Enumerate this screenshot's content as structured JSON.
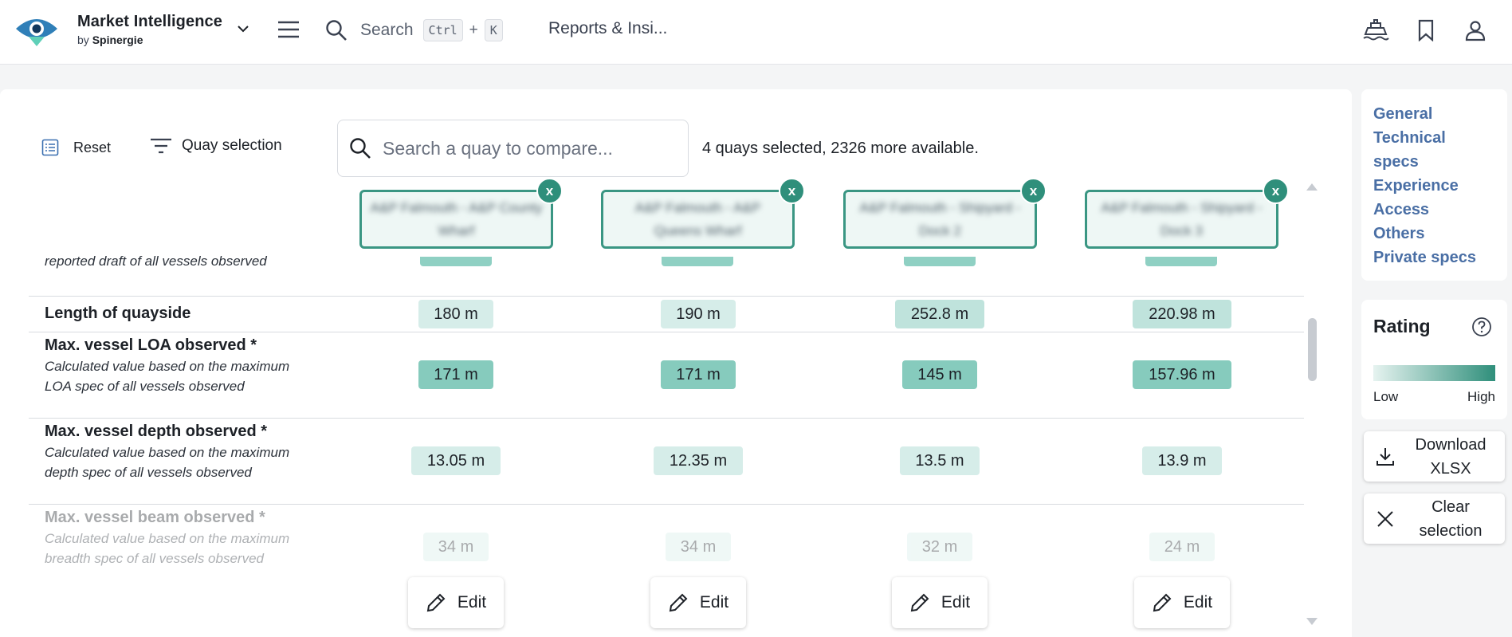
{
  "header": {
    "brand_title": "Market Intelligence",
    "brand_by": "by",
    "brand_company": "Spinergie",
    "search_label": "Search",
    "shortcut_ctrl": "Ctrl",
    "shortcut_plus": "+",
    "shortcut_key": "K",
    "breadcrumb": "Reports & Insi..."
  },
  "toolbar": {
    "reset_label": "Reset",
    "quay_selection_label": "Quay selection",
    "search_placeholder": "Search a quay to compare...",
    "selection_status": "4 quays selected, 2326 more available."
  },
  "columns": [
    {
      "name": "A&P Falmouth - A&P County Wharf",
      "close": "x"
    },
    {
      "name": "A&P Falmouth - A&P Queens Wharf",
      "close": "x"
    },
    {
      "name": "A&P Falmouth - Shipyard - Dock 2",
      "close": "x"
    },
    {
      "name": "A&P Falmouth - Shipyard - Dock 3",
      "close": "x"
    }
  ],
  "rows": {
    "cut_desc": "reported draft of all vessels observed",
    "length": {
      "label": "Length of quayside",
      "values": [
        "180 m",
        "190 m",
        "252.8 m",
        "220.98 m"
      ]
    },
    "loa": {
      "label": "Max. vessel LOA observed *",
      "desc": "Calculated value based on the maximum LOA spec of all vessels observed",
      "values": [
        "171 m",
        "171 m",
        "145 m",
        "157.96 m"
      ]
    },
    "depth": {
      "label": "Max. vessel depth observed *",
      "desc": "Calculated value based on the maximum depth spec of all vessels observed",
      "values": [
        "13.05 m",
        "12.35 m",
        "13.5 m",
        "13.9 m"
      ]
    },
    "beam": {
      "label": "Max. vessel beam observed *",
      "desc": "Calculated value based on the maximum breadth spec of all vessels observed",
      "values": [
        "34 m",
        "34 m",
        "32 m",
        "24 m"
      ]
    }
  },
  "edit_label": "Edit",
  "sidebar": {
    "nav": [
      "General",
      "Technical specs",
      "Experience",
      "Access",
      "Others",
      "Private specs"
    ],
    "rating_title": "Rating",
    "rating_low": "Low",
    "rating_high": "High",
    "download_label": "Download XLSX",
    "clear_label": "Clear selection"
  },
  "colors": {
    "accent": "#2f8f7b",
    "link": "#4a6fa5"
  }
}
